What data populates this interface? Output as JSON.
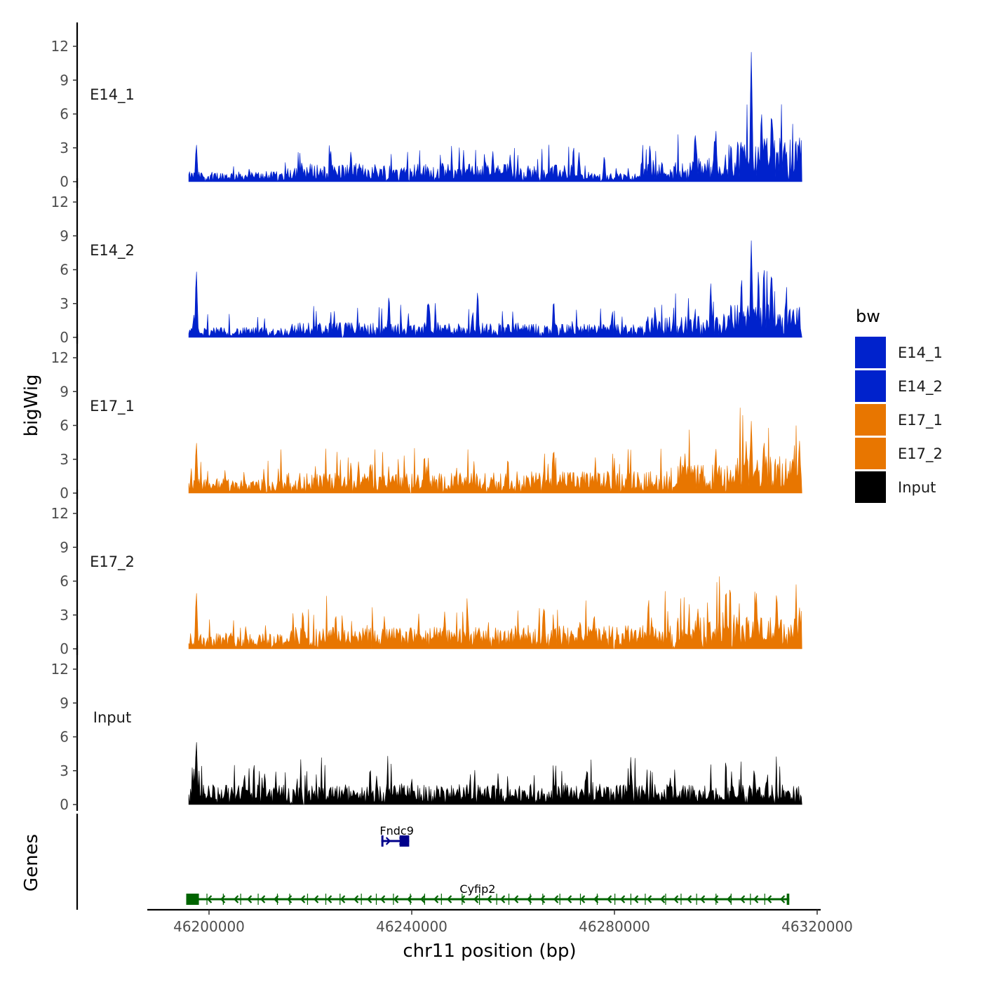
{
  "chart_data": {
    "type": "area",
    "chromosome": "chr11",
    "xlabel": "chr11 position (bp)",
    "ylabel": "bigWig",
    "genes_label": "Genes",
    "xlim": [
      46182000,
      46320000
    ],
    "data_range": [
      46196000,
      46317000
    ],
    "x_ticks": [
      46200000,
      46240000,
      46280000,
      46320000
    ],
    "x_tick_labels": [
      "46200000",
      "46240000",
      "46280000",
      "46320000"
    ],
    "y_ticks": [
      0,
      3,
      6,
      9,
      12
    ],
    "y_tick_labels": [
      "0",
      "3",
      "6",
      "9",
      "12"
    ],
    "ylim": [
      0,
      12
    ],
    "legend": {
      "title": "bw",
      "entries": [
        {
          "name": "E14_1",
          "color": "#0022cc"
        },
        {
          "name": "E14_2",
          "color": "#0022cc"
        },
        {
          "name": "E17_1",
          "color": "#e87600"
        },
        {
          "name": "E17_2",
          "color": "#e87600"
        },
        {
          "name": "Input",
          "color": "#000000"
        }
      ]
    },
    "tracks": [
      {
        "name": "E14_1",
        "color": "#0022cc",
        "peaks": [
          {
            "x": 46197500,
            "y": 3.3
          },
          {
            "x": 46224000,
            "y": 2.8
          },
          {
            "x": 46228000,
            "y": 2.7
          },
          {
            "x": 46256000,
            "y": 2.7
          },
          {
            "x": 46273000,
            "y": 2.6
          },
          {
            "x": 46278000,
            "y": 2.3
          },
          {
            "x": 46287000,
            "y": 3.3
          },
          {
            "x": 46296000,
            "y": 4.2
          },
          {
            "x": 46300000,
            "y": 4.6
          },
          {
            "x": 46303000,
            "y": 3.4
          },
          {
            "x": 46307000,
            "y": 11.5
          },
          {
            "x": 46309000,
            "y": 6.2
          },
          {
            "x": 46311000,
            "y": 6.2
          },
          {
            "x": 46316500,
            "y": 3.5
          }
        ],
        "segments": [
          {
            "from": 46196000,
            "to": 46216000,
            "level": 0.6
          },
          {
            "from": 46216000,
            "to": 46262000,
            "level": 1.1
          },
          {
            "from": 46262000,
            "to": 46272000,
            "level": 1.0
          },
          {
            "from": 46272000,
            "to": 46285000,
            "level": 0.5
          },
          {
            "from": 46285000,
            "to": 46295000,
            "level": 1.2
          },
          {
            "from": 46295000,
            "to": 46304000,
            "level": 1.6
          },
          {
            "from": 46304000,
            "to": 46317000,
            "level": 2.6
          }
        ]
      },
      {
        "name": "E14_2",
        "color": "#0022cc",
        "peaks": [
          {
            "x": 46197500,
            "y": 5.9
          },
          {
            "x": 46235500,
            "y": 3.7
          },
          {
            "x": 46253000,
            "y": 4.1
          },
          {
            "x": 46268000,
            "y": 3.3
          },
          {
            "x": 46288000,
            "y": 2.7
          },
          {
            "x": 46299000,
            "y": 4.8
          },
          {
            "x": 46303000,
            "y": 3.1
          },
          {
            "x": 46307000,
            "y": 8.6
          },
          {
            "x": 46309500,
            "y": 6.3
          },
          {
            "x": 46311000,
            "y": 5.9
          },
          {
            "x": 46316000,
            "y": 1.7
          }
        ],
        "segments": [
          {
            "from": 46196000,
            "to": 46216000,
            "level": 0.6
          },
          {
            "from": 46216000,
            "to": 46262000,
            "level": 0.9
          },
          {
            "from": 46262000,
            "to": 46286000,
            "level": 0.8
          },
          {
            "from": 46286000,
            "to": 46303000,
            "level": 1.3
          },
          {
            "from": 46303000,
            "to": 46317000,
            "level": 2.0
          }
        ]
      },
      {
        "name": "E17_1",
        "color": "#e87600",
        "peaks": [
          {
            "x": 46197500,
            "y": 4.5
          },
          {
            "x": 46229500,
            "y": 2.8
          },
          {
            "x": 46242500,
            "y": 3.4
          },
          {
            "x": 46268000,
            "y": 4.0
          },
          {
            "x": 46300000,
            "y": 4.0
          },
          {
            "x": 46306000,
            "y": 4.6
          },
          {
            "x": 46307000,
            "y": 6.4
          },
          {
            "x": 46309500,
            "y": 4.7
          },
          {
            "x": 46316500,
            "y": 4.7
          }
        ],
        "segments": [
          {
            "from": 46196000,
            "to": 46214000,
            "level": 0.9
          },
          {
            "from": 46214000,
            "to": 46260000,
            "level": 1.2
          },
          {
            "from": 46260000,
            "to": 46290000,
            "level": 1.3
          },
          {
            "from": 46290000,
            "to": 46304000,
            "level": 1.7
          },
          {
            "from": 46304000,
            "to": 46317000,
            "level": 2.2
          }
        ]
      },
      {
        "name": "E17_2",
        "color": "#e87600",
        "peaks": [
          {
            "x": 46197500,
            "y": 5.0
          },
          {
            "x": 46218500,
            "y": 3.4
          },
          {
            "x": 46225000,
            "y": 3.1
          },
          {
            "x": 46246500,
            "y": 3.3
          },
          {
            "x": 46266000,
            "y": 3.6
          },
          {
            "x": 46276000,
            "y": 3.1
          },
          {
            "x": 46296500,
            "y": 3.6
          },
          {
            "x": 46302000,
            "y": 5.4
          },
          {
            "x": 46308000,
            "y": 5.0
          },
          {
            "x": 46312000,
            "y": 5.0
          },
          {
            "x": 46316500,
            "y": 3.7
          }
        ],
        "segments": [
          {
            "from": 46196000,
            "to": 46216000,
            "level": 1.0
          },
          {
            "from": 46216000,
            "to": 46260000,
            "level": 1.3
          },
          {
            "from": 46260000,
            "to": 46292000,
            "level": 1.4
          },
          {
            "from": 46292000,
            "to": 46317000,
            "level": 1.9
          }
        ]
      },
      {
        "name": "Input",
        "color": "#000000",
        "peaks": [
          {
            "x": 46197500,
            "y": 5.6
          },
          {
            "x": 46207000,
            "y": 2.7
          },
          {
            "x": 46211000,
            "y": 2.8
          },
          {
            "x": 46240000,
            "y": 2.3
          },
          {
            "x": 46274500,
            "y": 3.0
          },
          {
            "x": 46291000,
            "y": 2.4
          },
          {
            "x": 46310000,
            "y": 2.2
          }
        ],
        "segments": [
          {
            "from": 46196000,
            "to": 46317000,
            "level": 1.2
          }
        ]
      }
    ],
    "genes": [
      {
        "name": "Fndc9",
        "start": 46234000,
        "end": 46239500,
        "strand": "+",
        "color": "#00008b",
        "exons": [
          {
            "start": 46234000,
            "end": 46234400
          },
          {
            "start": 46237600,
            "end": 46239500
          }
        ]
      },
      {
        "name": "Cyfip2",
        "start": 46195500,
        "end": 46314500,
        "strand": "-",
        "color": "#006400",
        "exons": [
          {
            "start": 46195500,
            "end": 46198000
          },
          {
            "start": 46314000,
            "end": 46314500
          }
        ]
      }
    ]
  }
}
